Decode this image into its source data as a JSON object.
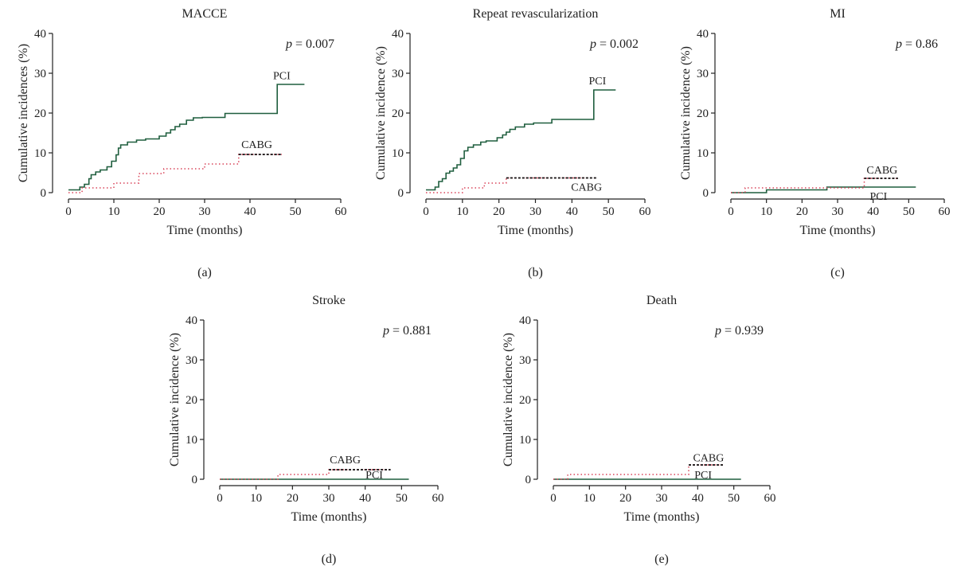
{
  "colors": {
    "pci": "#1f5e3e",
    "cabg_early": "#d9455a",
    "cabg_late": "#111111",
    "axis": "#222222"
  },
  "chart_data": [
    {
      "type": "line",
      "panel_label": "(a)",
      "title": "MACCE",
      "xlabel": "Time (months)",
      "ylabel": "Cumulative incidences (%)",
      "xlim": [
        0,
        60
      ],
      "ylim": [
        0,
        40
      ],
      "xticks": [
        0,
        10,
        20,
        30,
        40,
        50,
        60
      ],
      "yticks": [
        0,
        10,
        20,
        30,
        40
      ],
      "p_label": "p",
      "p_value": "= 0.007",
      "grid": false,
      "series": [
        {
          "name": "PCI",
          "style": "solid",
          "label_at": [
            47,
            28.5
          ],
          "x": [
            0,
            2.5,
            3.5,
            4.5,
            5,
            6,
            7,
            8.5,
            9.5,
            10.5,
            11,
            11.5,
            13,
            15,
            17,
            20,
            21.5,
            22.5,
            23.5,
            24.5,
            26,
            27.5,
            29.5,
            34.5,
            46,
            52
          ],
          "y": [
            0.7,
            1.4,
            2.1,
            3.5,
            4.5,
            5.2,
            5.7,
            6.5,
            7.9,
            9.5,
            11.2,
            12.0,
            12.7,
            13.2,
            13.5,
            14.2,
            15.0,
            15.8,
            16.6,
            17.2,
            18.2,
            18.8,
            18.9,
            19.9,
            27.2,
            27.2
          ]
        },
        {
          "name": "CABG",
          "style": "dotted",
          "label_at": [
            41.5,
            11.2
          ],
          "x": [
            0,
            3,
            10,
            15.5,
            21,
            30,
            37.5,
            47
          ],
          "y": [
            0,
            1.2,
            2.4,
            4.8,
            6.0,
            7.2,
            9.6,
            9.6
          ]
        }
      ]
    },
    {
      "type": "line",
      "panel_label": "(b)",
      "title": "Repeat revascularization",
      "xlabel": "Time (months)",
      "ylabel": "Cumulative incidence (%)",
      "xlim": [
        0,
        60
      ],
      "ylim": [
        0,
        40
      ],
      "xticks": [
        0,
        10,
        20,
        30,
        40,
        50,
        60
      ],
      "yticks": [
        0,
        10,
        20,
        30,
        40
      ],
      "p_label": "p",
      "p_value": "= 0.002",
      "grid": false,
      "series": [
        {
          "name": "PCI",
          "style": "solid",
          "label_at": [
            47,
            27.2
          ],
          "x": [
            0,
            2.5,
            3.5,
            4.5,
            5.5,
            6.5,
            7.5,
            8.5,
            9.5,
            10.5,
            11.5,
            13,
            15,
            16.5,
            19.5,
            21,
            22,
            23,
            24.5,
            27,
            29.5,
            34.5,
            46,
            52
          ],
          "y": [
            0.7,
            1.4,
            2.8,
            3.5,
            4.9,
            5.4,
            6.2,
            7.0,
            8.6,
            10.5,
            11.4,
            12.0,
            12.7,
            13.0,
            13.8,
            14.5,
            15.2,
            15.9,
            16.5,
            17.2,
            17.5,
            18.4,
            25.8,
            25.8
          ]
        },
        {
          "name": "CABG",
          "style": "dotted",
          "label_at": [
            44,
            0.5
          ],
          "x": [
            0,
            10,
            16,
            22,
            47
          ],
          "y": [
            0,
            1.2,
            2.4,
            3.7,
            3.7
          ]
        }
      ]
    },
    {
      "type": "line",
      "panel_label": "(c)",
      "title": "MI",
      "xlabel": "Time (months)",
      "ylabel": "Cumulative incidence (%)",
      "xlim": [
        0,
        60
      ],
      "ylim": [
        0,
        40
      ],
      "xticks": [
        0,
        10,
        20,
        30,
        40,
        50,
        60
      ],
      "yticks": [
        0,
        10,
        20,
        30,
        40
      ],
      "p_label": "p",
      "p_value": "= 0.86",
      "grid": false,
      "series": [
        {
          "name": "PCI",
          "style": "solid",
          "label_at": [
            41.5,
            -1.8
          ],
          "x": [
            0,
            10,
            27,
            52
          ],
          "y": [
            0,
            0.7,
            1.4,
            1.4
          ]
        },
        {
          "name": "CABG",
          "style": "dotted",
          "label_at": [
            42.5,
            4.8
          ],
          "x": [
            0,
            4,
            37.5,
            47
          ],
          "y": [
            0,
            1.2,
            3.6,
            3.6
          ]
        }
      ]
    },
    {
      "type": "line",
      "panel_label": "(d)",
      "title": "Stroke",
      "xlabel": "Time (months)",
      "ylabel": "Cumulative incidence (%)",
      "xlim": [
        0,
        60
      ],
      "ylim": [
        0,
        40
      ],
      "xticks": [
        0,
        10,
        20,
        30,
        40,
        50,
        60
      ],
      "yticks": [
        0,
        10,
        20,
        30,
        40
      ],
      "p_label": "p",
      "p_value": "= 0.881",
      "grid": false,
      "series": [
        {
          "name": "PCI",
          "style": "solid",
          "label_at": [
            42.5,
            0.2
          ],
          "x": [
            0,
            52
          ],
          "y": [
            0,
            0
          ]
        },
        {
          "name": "CABG",
          "style": "dotted",
          "label_at": [
            34.5,
            4.0
          ],
          "x": [
            0,
            16,
            30,
            47
          ],
          "y": [
            0,
            1.2,
            2.4,
            2.4
          ]
        }
      ]
    },
    {
      "type": "line",
      "panel_label": "(e)",
      "title": "Death",
      "xlabel": "Time (months)",
      "ylabel": "Cumulative incidence (%)",
      "xlim": [
        0,
        60
      ],
      "ylim": [
        0,
        40
      ],
      "xticks": [
        0,
        10,
        20,
        30,
        40,
        50,
        60
      ],
      "yticks": [
        0,
        10,
        20,
        30,
        40
      ],
      "p_label": "p",
      "p_value": "= 0.939",
      "grid": false,
      "series": [
        {
          "name": "PCI",
          "style": "solid",
          "label_at": [
            41.5,
            0.2
          ],
          "x": [
            0,
            52
          ],
          "y": [
            0,
            0
          ]
        },
        {
          "name": "CABG",
          "style": "dotted",
          "label_at": [
            43,
            4.5
          ],
          "x": [
            0,
            4,
            37.5,
            47
          ],
          "y": [
            0,
            1.2,
            3.6,
            3.6
          ]
        }
      ]
    }
  ]
}
